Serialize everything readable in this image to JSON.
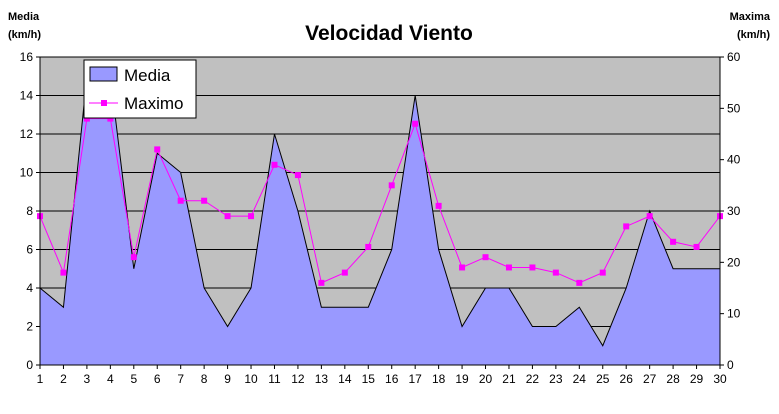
{
  "chart_data": {
    "type": "area",
    "title": "Velocidad Viento",
    "y_left_label": [
      "Media",
      "(km/h)"
    ],
    "y_right_label": [
      "Maxima",
      "(km/h)"
    ],
    "x": [
      1,
      2,
      3,
      4,
      5,
      6,
      7,
      8,
      9,
      10,
      11,
      12,
      13,
      14,
      15,
      16,
      17,
      18,
      19,
      20,
      21,
      22,
      23,
      24,
      25,
      26,
      27,
      28,
      29,
      30
    ],
    "ylim_left": [
      0,
      16
    ],
    "yticks_left": [
      0,
      2,
      4,
      6,
      8,
      10,
      12,
      14,
      16
    ],
    "ylim_right": [
      0,
      60
    ],
    "yticks_right": [
      0,
      10,
      20,
      30,
      40,
      50,
      60
    ],
    "grid": true,
    "legend_position": "top-left",
    "series": [
      {
        "name": "Media",
        "type": "area",
        "axis": "left",
        "color": "#9999ff",
        "values": [
          4,
          3,
          15,
          15,
          5,
          11,
          10,
          4,
          2,
          4,
          12,
          8,
          3,
          3,
          3,
          6,
          14,
          6,
          2,
          4,
          4,
          2,
          2,
          3,
          1,
          4,
          8,
          5,
          5,
          5
        ]
      },
      {
        "name": "Maximo",
        "type": "line",
        "axis": "right",
        "color": "#ff00ff",
        "values": [
          29,
          18,
          48,
          48,
          21,
          42,
          32,
          32,
          29,
          29,
          39,
          37,
          16,
          18,
          23,
          35,
          47,
          31,
          19,
          21,
          19,
          19,
          18,
          16,
          18,
          27,
          29,
          24,
          23,
          29
        ]
      }
    ]
  }
}
